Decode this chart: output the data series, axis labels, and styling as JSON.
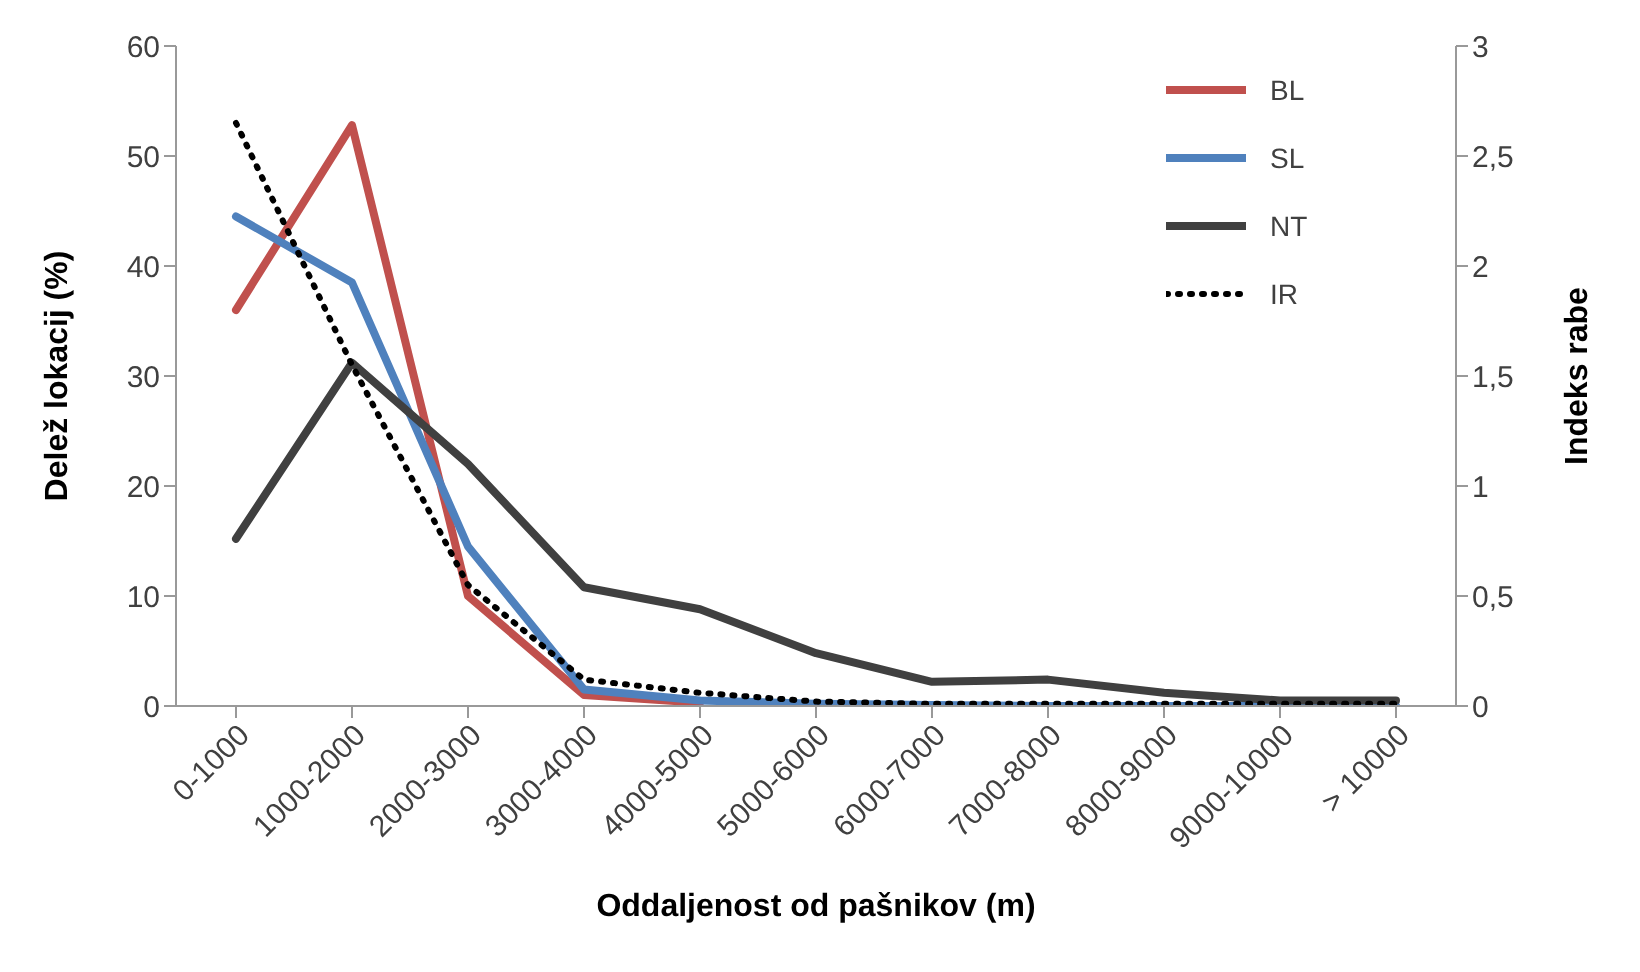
{
  "chart_data": {
    "type": "line",
    "xlabel": "Oddaljenost od pašnikov (m)",
    "ylabel": "Delež lokacij (%)",
    "y2label": "Indeks rabe",
    "categories": [
      "0-1000",
      "1000-2000",
      "2000-3000",
      "3000-4000",
      "4000-5000",
      "5000-6000",
      "6000-7000",
      "7000-8000",
      "8000-9000",
      "9000-10000",
      "> 10000"
    ],
    "series": [
      {
        "name": "BL",
        "color": "#c0504d",
        "line_style": "solid",
        "values": [
          36,
          52.8,
          10,
          1,
          0.3,
          null,
          null,
          null,
          null,
          null,
          null
        ]
      },
      {
        "name": "SL",
        "color": "#4f81bd",
        "line_style": "solid",
        "values": [
          44.5,
          38.5,
          14.5,
          1.5,
          0.5,
          0.2,
          0.1,
          0,
          0,
          0,
          0
        ]
      },
      {
        "name": "NT",
        "color": "#404040",
        "line_style": "solid",
        "values": [
          15.2,
          31.2,
          22,
          10.8,
          8.8,
          4.8,
          2.2,
          2.4,
          1.2,
          0.5,
          0.5
        ]
      },
      {
        "name": "IR",
        "color": "#000000",
        "line_style": "dotted",
        "axis": "y2",
        "values": [
          2.65,
          1.55,
          0.55,
          0.12,
          0.06,
          0.02,
          0.01,
          0.01,
          0.01,
          0.01,
          0.01
        ]
      }
    ],
    "ylim": [
      0,
      60
    ],
    "yticks": [
      0,
      10,
      20,
      30,
      40,
      50,
      60
    ],
    "y2lim": [
      0,
      3
    ],
    "y2ticks": [
      0,
      {
        "value": 0.5,
        "label": "0,5"
      },
      1,
      {
        "value": 1.5,
        "label": "1,5"
      },
      2,
      {
        "value": 2.5,
        "label": "2,5"
      },
      3
    ],
    "grid": false,
    "legend": "top right",
    "marker": "none"
  }
}
